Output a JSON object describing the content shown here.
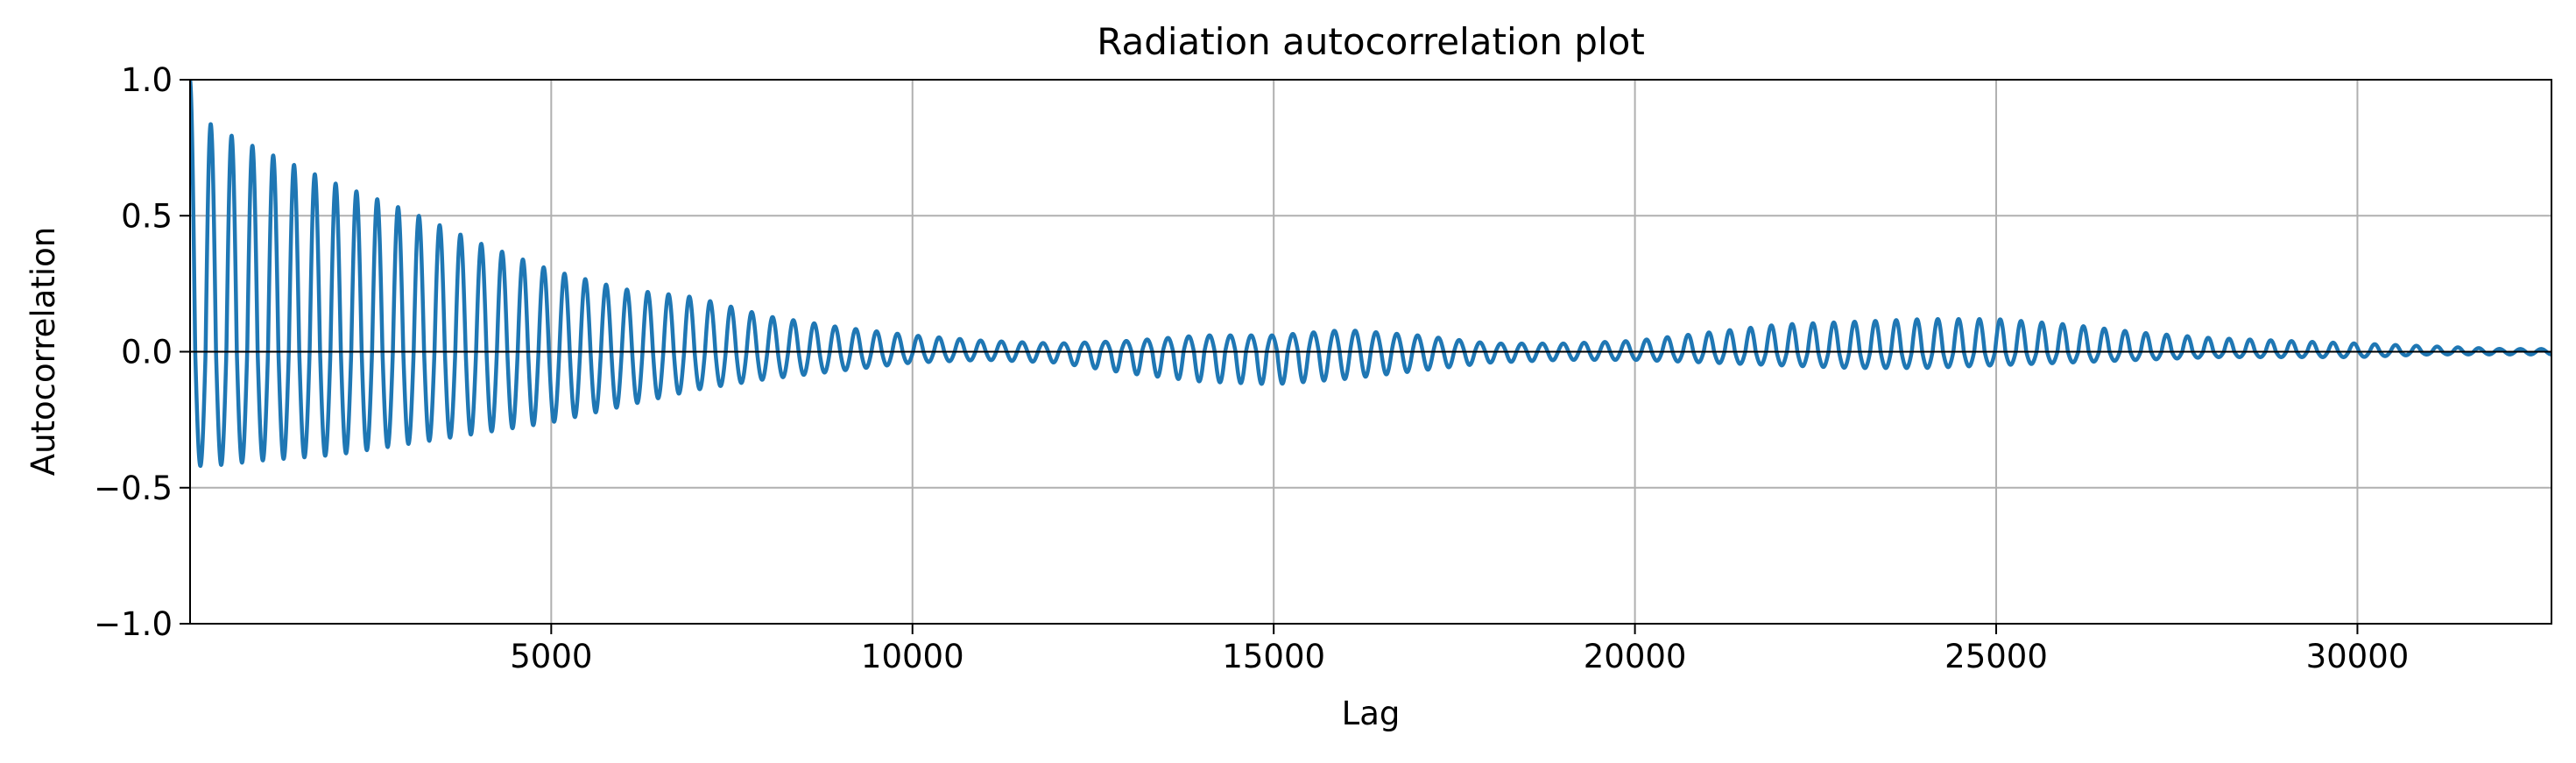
{
  "chart_data": {
    "type": "line",
    "title": "Radiation autocorrelation plot",
    "xlabel": "Lag",
    "ylabel": "Autocorrelation",
    "xlim": [
      1,
      32686
    ],
    "ylim": [
      -1.0,
      1.0
    ],
    "grid": true,
    "x_ticks": [
      5000,
      10000,
      15000,
      20000,
      25000,
      30000
    ],
    "x_tick_labels": [
      "5000",
      "10000",
      "15000",
      "20000",
      "25000",
      "30000"
    ],
    "y_ticks": [
      -1.0,
      -0.5,
      0.0,
      0.5,
      1.0
    ],
    "y_tick_labels": [
      "−1.0",
      "−0.5",
      "0.0",
      "0.5",
      "1.0"
    ],
    "series_color": "#1f77b4",
    "period_lags": 288,
    "envelope": {
      "x": [
        0,
        300,
        1000,
        2000,
        3000,
        4000,
        5000,
        6000,
        7000,
        8000,
        9000,
        10000,
        11000,
        12000,
        13000,
        14000,
        15000,
        16000,
        17000,
        18000,
        19000,
        20000,
        21000,
        22000,
        23000,
        24000,
        25000,
        26000,
        27000,
        28000,
        29000,
        30000,
        31000,
        32000,
        32686
      ],
      "upper": [
        1.0,
        0.83,
        0.74,
        0.62,
        0.52,
        0.4,
        0.3,
        0.23,
        0.2,
        0.13,
        0.09,
        0.06,
        0.04,
        0.03,
        0.04,
        0.06,
        0.06,
        0.08,
        0.06,
        0.03,
        0.03,
        0.04,
        0.07,
        0.1,
        0.11,
        0.12,
        0.12,
        0.1,
        0.07,
        0.05,
        0.04,
        0.03,
        0.02,
        0.01,
        0.01
      ],
      "lower": [
        -0.42,
        -0.42,
        -0.4,
        -0.38,
        -0.34,
        -0.3,
        -0.26,
        -0.2,
        -0.14,
        -0.1,
        -0.07,
        -0.04,
        -0.03,
        -0.04,
        -0.08,
        -0.11,
        -0.12,
        -0.1,
        -0.07,
        -0.04,
        -0.03,
        -0.03,
        -0.04,
        -0.05,
        -0.06,
        -0.06,
        -0.05,
        -0.04,
        -0.03,
        -0.02,
        -0.02,
        -0.02,
        -0.01,
        -0.01,
        -0.01
      ]
    }
  }
}
